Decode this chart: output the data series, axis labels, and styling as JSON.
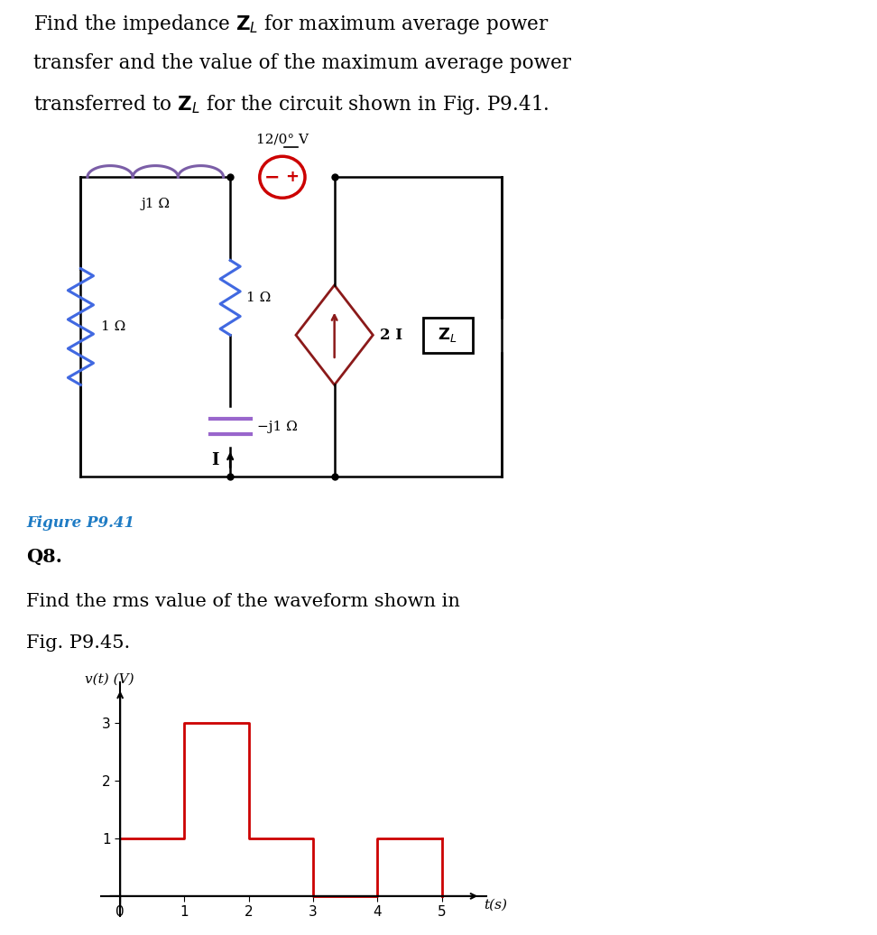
{
  "bg_color": "#ffffff",
  "title_fontsize": 15.5,
  "fig_caption_color": "#1e7bc4",
  "colors": {
    "inductor": "#7b5ea7",
    "left_resistor": "#4169e1",
    "mid_resistor": "#4169e1",
    "vsource": "#cc0000",
    "cccs": "#8b1a1a",
    "zl_box": "#000000",
    "wire": "#000000",
    "cap": "#9966cc"
  },
  "waveform": {
    "color": "#cc0000",
    "xlabel": "t(s)",
    "ylabel": "v(t) (V)",
    "xticks": [
      0,
      1,
      2,
      3,
      4,
      5
    ],
    "yticks": [
      1,
      2,
      3
    ],
    "xlim": [
      -0.3,
      5.7
    ],
    "ylim": [
      -0.35,
      3.7
    ]
  }
}
